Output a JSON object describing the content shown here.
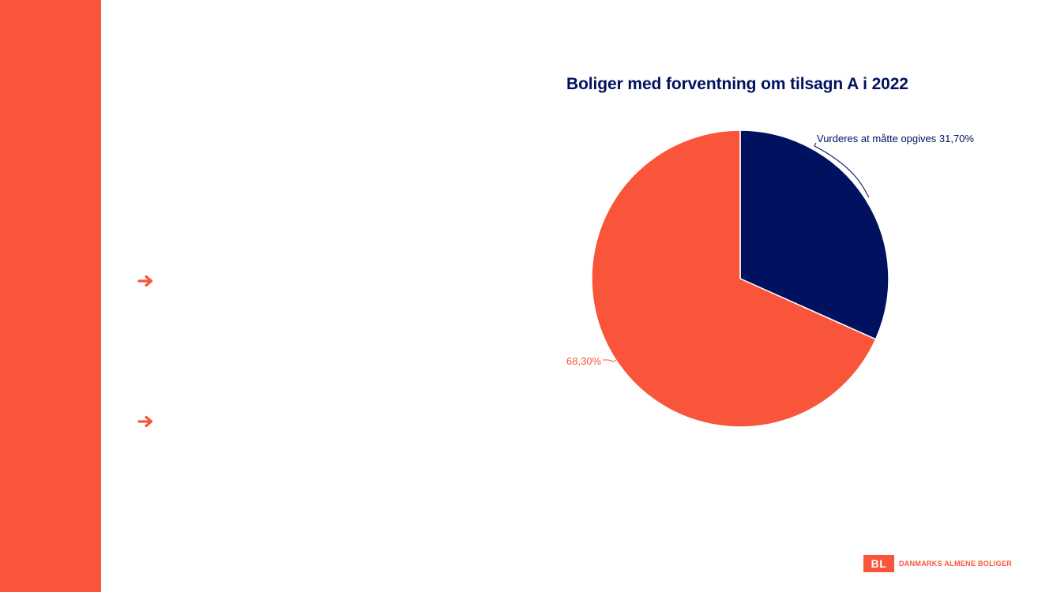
{
  "colors": {
    "accent": "#f8553a",
    "navy": "#00125f",
    "background": "#ffffff"
  },
  "bullets": [
    {
      "icon": "arrow-right-icon"
    },
    {
      "icon": "arrow-right-icon"
    }
  ],
  "chart_data": {
    "type": "pie",
    "title": "Boliger med forventning om tilsagn A i 2022",
    "start_angle_deg": 0,
    "direction": "clockwise",
    "slices": [
      {
        "label": "Vurderes at måtte opgives 31,70%",
        "value": 31.7,
        "color": "#00125f"
      },
      {
        "label": "68,30%",
        "value": 68.3,
        "color": "#f8553a"
      }
    ],
    "legend": "none"
  },
  "logo": {
    "mark": "BL",
    "text": "DANMARKS ALMENE BOLIGER"
  }
}
